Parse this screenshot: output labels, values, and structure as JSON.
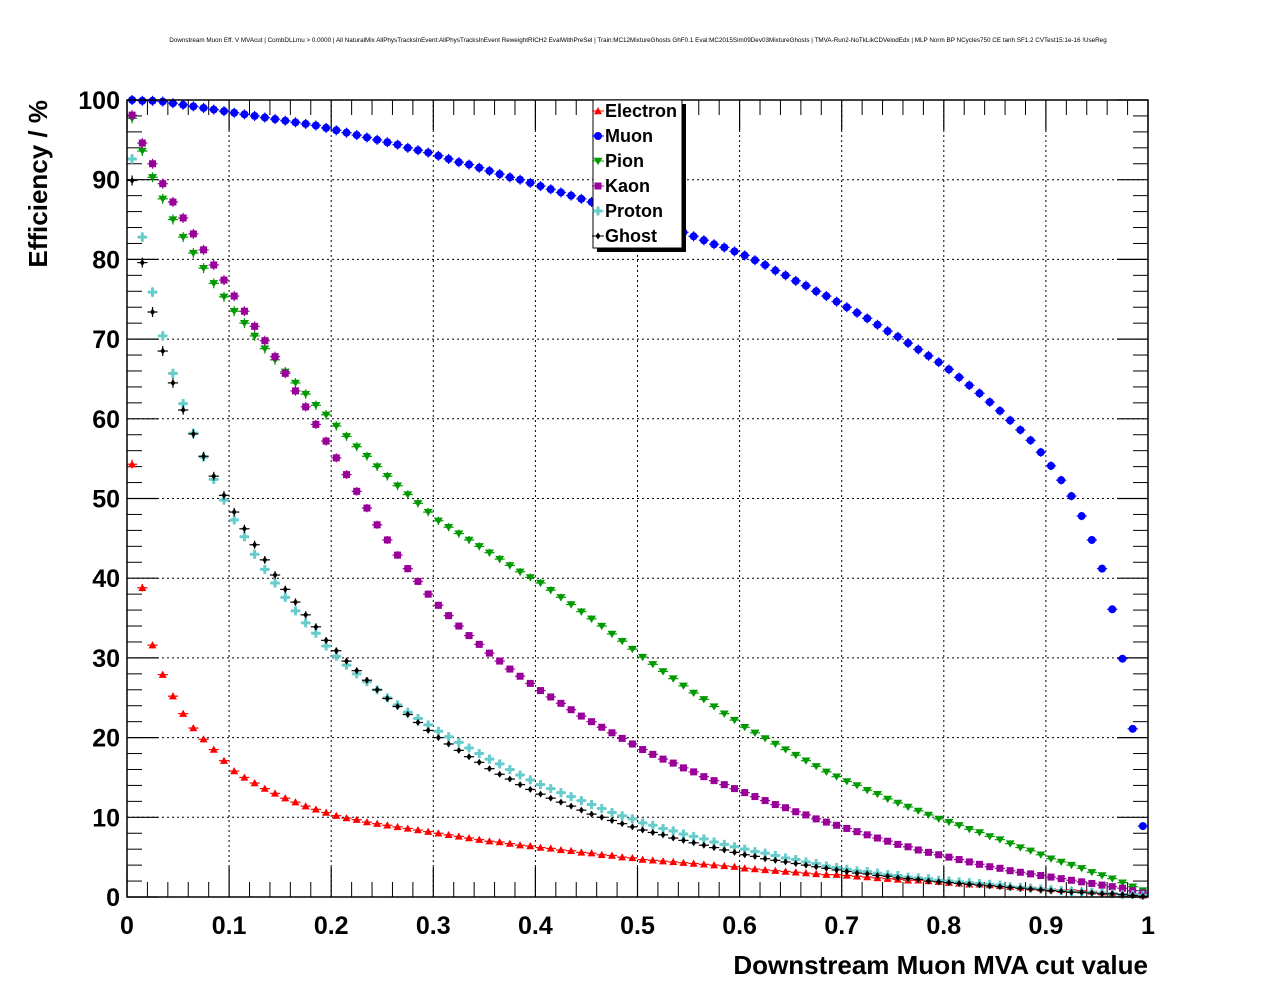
{
  "chart_data": {
    "type": "scatter",
    "title": "Downstream Muon Eff. V MVAcut | CombDLLmu > 0.0000 | All NaturalMix AllPhysTracksInEvent:AllPhysTracksInEvent ReweightRICH2 EvalWithPreSel | Train:MC12MixtureGhosts GhF0.1 Eval:MC2015Sim09Dev03MixtureGhosts | TMVA-Run2-NoTkLikCDVelodEdx | MLP Norm BP NCycles750 CE tanh SF1.2 CVTest15:1e-16 !UseReg",
    "xlabel": "Downstream Muon MVA cut value",
    "ylabel": "Efficiency / %",
    "xlim": [
      0,
      1
    ],
    "ylim": [
      0,
      100
    ],
    "xticks": [
      "0",
      "0.1",
      "0.2",
      "0.3",
      "0.4",
      "0.5",
      "0.6",
      "0.7",
      "0.8",
      "0.9",
      "1"
    ],
    "yticks": [
      "0",
      "10",
      "20",
      "30",
      "40",
      "50",
      "60",
      "70",
      "80",
      "90",
      "100"
    ],
    "grid": true,
    "legend_position": "top-center",
    "bins": 100,
    "series": [
      {
        "name": "Electron",
        "color": "#ff0000",
        "marker": "triangle-up",
        "values": [
          54.3,
          38.8,
          31.6,
          27.9,
          25.2,
          23.0,
          21.2,
          19.8,
          18.5,
          17.1,
          15.8,
          15.0,
          14.3,
          13.6,
          13.0,
          12.4,
          11.9,
          11.4,
          11.0,
          10.6,
          10.2,
          9.9,
          9.7,
          9.4,
          9.2,
          9.0,
          8.8,
          8.6,
          8.4,
          8.2,
          8.0,
          7.8,
          7.6,
          7.4,
          7.2,
          7.0,
          6.9,
          6.7,
          6.5,
          6.4,
          6.2,
          6.1,
          5.9,
          5.8,
          5.6,
          5.5,
          5.3,
          5.2,
          5.0,
          4.9,
          4.7,
          4.6,
          4.5,
          4.4,
          4.3,
          4.2,
          4.1,
          4.0,
          3.9,
          3.8,
          3.6,
          3.5,
          3.4,
          3.3,
          3.2,
          3.1,
          3.0,
          2.9,
          2.8,
          2.8,
          2.7,
          2.6,
          2.5,
          2.4,
          2.3,
          2.2,
          2.1,
          2.1,
          2.0,
          1.9,
          1.8,
          1.7,
          1.6,
          1.6,
          1.5,
          1.4,
          1.3,
          1.2,
          1.2,
          1.1,
          1.0,
          0.9,
          0.9,
          0.8,
          0.7,
          0.6,
          0.5,
          0.4,
          0.3,
          0.2
        ]
      },
      {
        "name": "Muon",
        "color": "#0000ff",
        "marker": "circle",
        "values": [
          100.0,
          99.9,
          99.9,
          99.8,
          99.6,
          99.4,
          99.2,
          99.0,
          98.8,
          98.6,
          98.4,
          98.2,
          98.0,
          97.8,
          97.6,
          97.4,
          97.2,
          97.0,
          96.8,
          96.5,
          96.2,
          95.9,
          95.6,
          95.3,
          95.0,
          94.7,
          94.4,
          94.0,
          93.7,
          93.4,
          93.0,
          92.6,
          92.2,
          91.9,
          91.5,
          91.1,
          90.7,
          90.3,
          90.0,
          89.6,
          89.2,
          88.8,
          88.4,
          88.0,
          87.6,
          87.2,
          86.8,
          86.4,
          86.0,
          85.7,
          85.3,
          84.8,
          84.3,
          83.9,
          83.4,
          82.9,
          82.4,
          81.9,
          81.5,
          81.0,
          80.5,
          79.9,
          79.3,
          78.6,
          78.0,
          77.3,
          76.7,
          76.0,
          75.4,
          74.7,
          74.0,
          73.3,
          72.6,
          71.8,
          71.0,
          70.3,
          69.5,
          68.7,
          67.9,
          67.1,
          66.2,
          65.2,
          64.2,
          63.2,
          62.1,
          61.0,
          59.8,
          58.6,
          57.3,
          55.8,
          54.1,
          52.3,
          50.3,
          47.8,
          44.8,
          41.2,
          36.1,
          29.9,
          21.1,
          8.9
        ]
      },
      {
        "name": "Pion",
        "color": "#009900",
        "marker": "triangle-down",
        "values": [
          97.7,
          93.6,
          90.3,
          87.6,
          85.0,
          82.8,
          80.8,
          78.9,
          77.0,
          75.3,
          73.5,
          72.0,
          70.4,
          68.8,
          67.4,
          65.9,
          64.5,
          63.1,
          61.7,
          60.5,
          59.1,
          57.8,
          56.5,
          55.3,
          54.0,
          52.8,
          51.6,
          50.5,
          49.4,
          48.3,
          47.2,
          46.4,
          45.6,
          44.8,
          44.0,
          43.2,
          42.4,
          41.6,
          40.8,
          40.1,
          39.4,
          38.5,
          37.6,
          36.7,
          35.8,
          34.9,
          34.0,
          33.0,
          32.1,
          31.1,
          30.1,
          29.2,
          28.3,
          27.4,
          26.5,
          25.6,
          24.8,
          23.9,
          23.0,
          22.2,
          21.3,
          20.6,
          19.9,
          19.2,
          18.5,
          17.8,
          17.1,
          16.4,
          15.7,
          15.1,
          14.5,
          14.0,
          13.4,
          12.9,
          12.3,
          11.8,
          11.3,
          10.8,
          10.3,
          9.8,
          9.4,
          9.0,
          8.5,
          8.1,
          7.6,
          7.2,
          6.7,
          6.2,
          5.8,
          5.3,
          4.8,
          4.4,
          4.0,
          3.6,
          3.1,
          2.7,
          2.3,
          1.8,
          1.3,
          0.8
        ]
      },
      {
        "name": "Kaon",
        "color": "#990099",
        "marker": "square",
        "values": [
          98.1,
          94.6,
          92.0,
          89.5,
          87.2,
          85.2,
          83.2,
          81.2,
          79.3,
          77.4,
          75.4,
          73.5,
          71.6,
          69.8,
          67.8,
          65.7,
          63.5,
          61.5,
          59.3,
          57.2,
          55.1,
          53.0,
          50.9,
          48.8,
          46.7,
          44.8,
          42.9,
          41.2,
          39.6,
          38.0,
          36.6,
          35.3,
          34.0,
          32.8,
          31.7,
          30.6,
          29.6,
          28.6,
          27.7,
          26.8,
          25.9,
          25.1,
          24.3,
          23.5,
          22.7,
          22.0,
          21.3,
          20.6,
          19.9,
          19.2,
          18.5,
          17.9,
          17.3,
          16.8,
          16.2,
          15.7,
          15.1,
          14.6,
          14.1,
          13.6,
          13.1,
          12.6,
          12.1,
          11.6,
          11.2,
          10.7,
          10.3,
          9.8,
          9.4,
          9.0,
          8.6,
          8.2,
          7.8,
          7.4,
          7.0,
          6.6,
          6.3,
          5.9,
          5.6,
          5.3,
          5.0,
          4.7,
          4.4,
          4.1,
          3.8,
          3.6,
          3.3,
          3.1,
          2.9,
          2.7,
          2.5,
          2.3,
          2.1,
          1.9,
          1.7,
          1.5,
          1.3,
          1.1,
          0.8,
          0.5
        ]
      },
      {
        "name": "Proton",
        "color": "#66cccc",
        "marker": "cross",
        "values": [
          92.6,
          82.8,
          75.9,
          70.4,
          65.7,
          61.9,
          58.2,
          55.2,
          52.4,
          49.8,
          47.3,
          45.2,
          43.0,
          41.1,
          39.4,
          37.6,
          35.9,
          34.4,
          33.1,
          31.5,
          30.2,
          29.1,
          28.0,
          27.0,
          26.0,
          25.0,
          24.1,
          23.2,
          22.4,
          21.6,
          20.8,
          20.1,
          19.4,
          18.7,
          18.0,
          17.3,
          16.7,
          16.0,
          15.3,
          14.7,
          14.1,
          13.6,
          13.1,
          12.6,
          12.1,
          11.6,
          11.1,
          10.6,
          10.2,
          9.8,
          9.3,
          9.0,
          8.6,
          8.3,
          7.9,
          7.6,
          7.3,
          6.9,
          6.6,
          6.3,
          6.0,
          5.7,
          5.5,
          5.2,
          4.9,
          4.7,
          4.4,
          4.2,
          3.9,
          3.7,
          3.5,
          3.3,
          3.2,
          3.0,
          2.8,
          2.7,
          2.5,
          2.4,
          2.3,
          2.1,
          2.0,
          1.9,
          1.8,
          1.7,
          1.6,
          1.5,
          1.3,
          1.2,
          1.1,
          1.0,
          0.9,
          0.8,
          0.7,
          0.6,
          0.6,
          0.5,
          0.4,
          0.3,
          0.3,
          0.2
        ]
      },
      {
        "name": "Ghost",
        "color": "#000000",
        "marker": "diamond",
        "values": [
          89.9,
          79.6,
          73.4,
          68.5,
          64.5,
          61.1,
          58.1,
          55.3,
          52.8,
          50.4,
          48.3,
          46.2,
          44.2,
          42.3,
          40.4,
          38.6,
          37.0,
          35.4,
          33.9,
          32.2,
          30.9,
          29.6,
          28.4,
          27.2,
          26.0,
          24.9,
          23.9,
          22.9,
          21.9,
          20.9,
          20.0,
          19.2,
          18.4,
          17.6,
          16.9,
          16.1,
          15.4,
          14.8,
          14.1,
          13.5,
          12.9,
          12.4,
          11.9,
          11.4,
          10.9,
          10.4,
          10.0,
          9.6,
          9.2,
          8.8,
          8.4,
          8.1,
          7.8,
          7.4,
          7.1,
          6.8,
          6.5,
          6.2,
          5.9,
          5.6,
          5.3,
          5.1,
          4.8,
          4.6,
          4.4,
          4.2,
          4.0,
          3.8,
          3.6,
          3.4,
          3.2,
          3.0,
          2.9,
          2.7,
          2.6,
          2.4,
          2.3,
          2.2,
          2.0,
          1.9,
          1.8,
          1.7,
          1.6,
          1.5,
          1.4,
          1.3,
          1.2,
          1.1,
          1.0,
          0.9,
          0.8,
          0.7,
          0.6,
          0.6,
          0.5,
          0.4,
          0.4,
          0.3,
          0.2,
          0.1
        ]
      }
    ]
  }
}
